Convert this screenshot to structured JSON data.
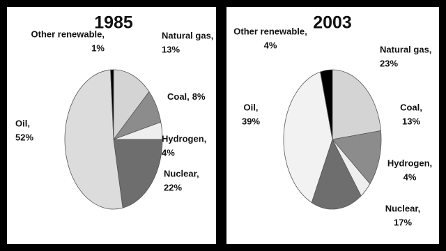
{
  "chart_data": [
    {
      "type": "pie",
      "title": "1985",
      "categories": [
        "Natural gas,",
        "Coal,",
        "Hydrogen,",
        "Nuclear,",
        "Oil,",
        "Other renewable,"
      ],
      "values": [
        13,
        8,
        4,
        22,
        52,
        1
      ],
      "value_labels": [
        "13%",
        "8%",
        "4%",
        "22%",
        "52%",
        "1%"
      ],
      "colors": [
        "#d4d4d4",
        "#8c8c8c",
        "#eeeeee",
        "#6e6e6e",
        "#dcdcdc",
        "#000000"
      ]
    },
    {
      "type": "pie",
      "title": "2003",
      "categories": [
        "Natural gas,",
        "Coal,",
        "Hydrogen,",
        "Nuclear,",
        "Oil,",
        "Other renewable,"
      ],
      "values": [
        23,
        13,
        4,
        17,
        39,
        4
      ],
      "value_labels": [
        "23%",
        "13%",
        "4%",
        "17%",
        "39%",
        "4%"
      ],
      "colors": [
        "#d4d4d4",
        "#8c8c8c",
        "#eeeeee",
        "#6e6e6e",
        "#f2f2f2",
        "#000000"
      ]
    }
  ]
}
